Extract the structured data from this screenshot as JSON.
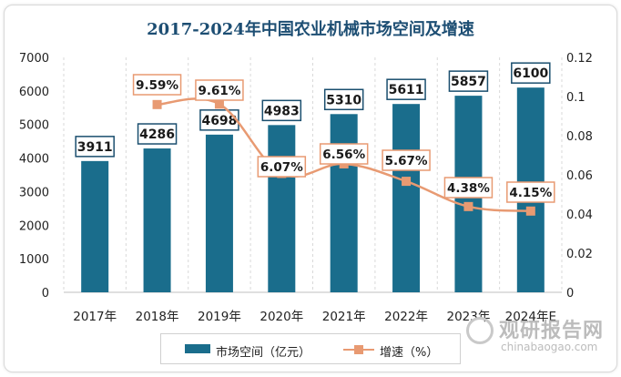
{
  "chart_data": {
    "type": "bar",
    "title": "2017-2024年中国农业机械市场空间及增速",
    "categories": [
      "2017年",
      "2018年",
      "2019年",
      "2020年",
      "2021年",
      "2022年",
      "2023年",
      "2024年E"
    ],
    "series": [
      {
        "name": "市场空间（亿元）",
        "type": "bar",
        "axis": "left",
        "color": "#1a6d8c",
        "values": [
          3911,
          4286,
          4698,
          4983,
          5310,
          5611,
          5857,
          6100
        ],
        "labels": [
          "3911",
          "4286",
          "4698",
          "4983",
          "5310",
          "5611",
          "5857",
          "6100"
        ]
      },
      {
        "name": "增速（%）",
        "type": "line",
        "axis": "right",
        "color": "#e89a72",
        "values": [
          null,
          0.0959,
          0.0961,
          0.0607,
          0.0656,
          0.0567,
          0.0438,
          0.0415
        ],
        "labels": [
          "",
          "9.59%",
          "9.61%",
          "6.07%",
          "6.56%",
          "5.67%",
          "4.38%",
          "4.15%"
        ]
      }
    ],
    "y_left": {
      "min": 0,
      "max": 7000,
      "ticks": [
        "0",
        "1000",
        "2000",
        "3000",
        "4000",
        "5000",
        "6000",
        "7000"
      ]
    },
    "y_right": {
      "min": 0,
      "max": 0.12,
      "ticks": [
        "0",
        "0.02",
        "0.04",
        "0.06",
        "0.08",
        "0.1",
        "0.12"
      ]
    },
    "grid": true,
    "legend_position": "bottom"
  },
  "watermark": {
    "text_cn": "观研报告网",
    "text_en": "chinabaogao.com"
  }
}
